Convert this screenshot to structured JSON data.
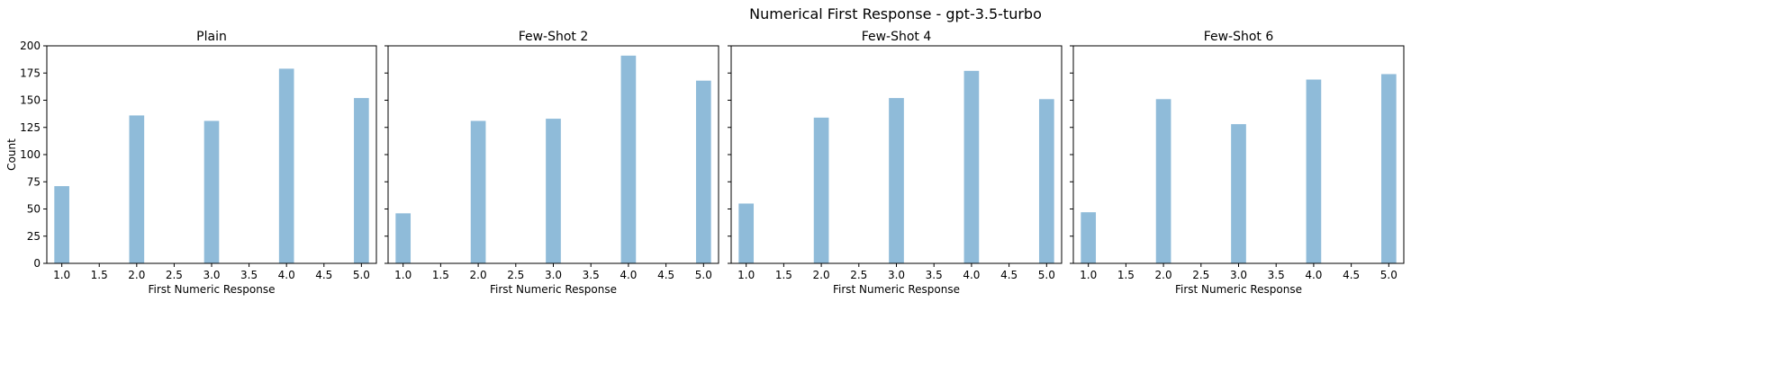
{
  "suptitle": "Numerical First Response - gpt-3.5-turbo",
  "chart_data": [
    {
      "type": "bar",
      "title": "Plain",
      "xlabel": "First Numeric Response",
      "ylabel": "Count",
      "x": [
        1,
        2,
        3,
        4,
        5
      ],
      "values": [
        71,
        136,
        131,
        179,
        152
      ],
      "xlim": [
        0.8,
        5.2
      ],
      "ylim": [
        0,
        200
      ],
      "xticks": [
        "1.0",
        "1.5",
        "2.0",
        "2.5",
        "3.0",
        "3.5",
        "4.0",
        "4.5",
        "5.0"
      ],
      "yticks": [
        "0",
        "25",
        "50",
        "75",
        "100",
        "125",
        "150",
        "175",
        "200"
      ],
      "color": "#8fbbd9"
    },
    {
      "type": "bar",
      "title": "Few-Shot 2",
      "xlabel": "First Numeric Response",
      "ylabel": "",
      "x": [
        1,
        2,
        3,
        4,
        5
      ],
      "values": [
        46,
        131,
        133,
        191,
        168
      ],
      "xlim": [
        0.8,
        5.2
      ],
      "ylim": [
        0,
        200
      ],
      "xticks": [
        "1.0",
        "1.5",
        "2.0",
        "2.5",
        "3.0",
        "3.5",
        "4.0",
        "4.5",
        "5.0"
      ],
      "yticks": [],
      "color": "#8fbbd9"
    },
    {
      "type": "bar",
      "title": "Few-Shot 4",
      "xlabel": "First Numeric Response",
      "ylabel": "",
      "x": [
        1,
        2,
        3,
        4,
        5
      ],
      "values": [
        55,
        134,
        152,
        177,
        151
      ],
      "xlim": [
        0.8,
        5.2
      ],
      "ylim": [
        0,
        200
      ],
      "xticks": [
        "1.0",
        "1.5",
        "2.0",
        "2.5",
        "3.0",
        "3.5",
        "4.0",
        "4.5",
        "5.0"
      ],
      "yticks": [],
      "color": "#8fbbd9"
    },
    {
      "type": "bar",
      "title": "Few-Shot 6",
      "xlabel": "First Numeric Response",
      "ylabel": "",
      "x": [
        1,
        2,
        3,
        4,
        5
      ],
      "values": [
        47,
        151,
        128,
        169,
        174
      ],
      "xlim": [
        0.8,
        5.2
      ],
      "ylim": [
        0,
        200
      ],
      "xticks": [
        "1.0",
        "1.5",
        "2.0",
        "2.5",
        "3.0",
        "3.5",
        "4.0",
        "4.5",
        "5.0"
      ],
      "yticks": [],
      "color": "#8fbbd9"
    }
  ]
}
